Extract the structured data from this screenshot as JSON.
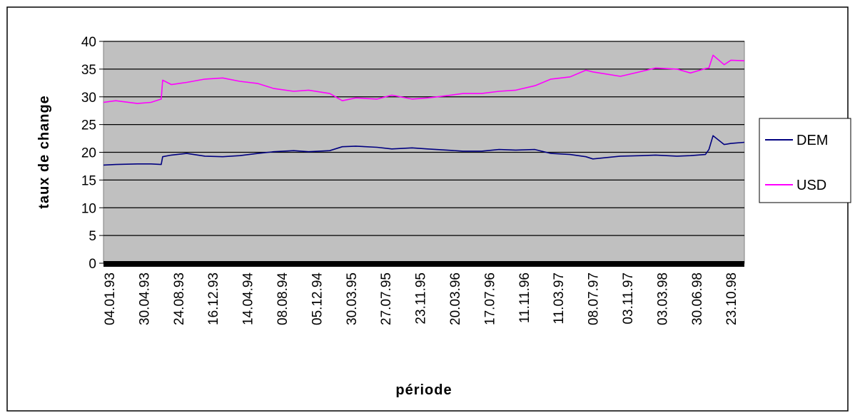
{
  "chart_data": {
    "type": "line",
    "title": "",
    "xlabel": "période",
    "ylabel": "taux de change",
    "ylim": [
      0,
      40
    ],
    "y_ticks": [
      0,
      5,
      10,
      15,
      20,
      25,
      30,
      35,
      40
    ],
    "x_tick_labels": [
      "04.01.93",
      "30.04.93",
      "24.08.93",
      "16.12.93",
      "14.04.94",
      "08.08.94",
      "05.12.94",
      "30.03.95",
      "27.07.95",
      "23.11.95",
      "20.03.96",
      "17.07.96",
      "11.11.96",
      "11.03.97",
      "08.07.97",
      "03.11.97",
      "03.03.98",
      "30.06.98",
      "23.10.98"
    ],
    "grid": true,
    "background": "#c0c0c0",
    "legend_position": "right",
    "series": [
      {
        "name": "DEM",
        "color": "#000080",
        "x": [
          "04.01.93",
          "15.02.93",
          "30.04.93",
          "15.06.93",
          "20.07.93",
          "25.07.93",
          "24.08.93",
          "15.10.93",
          "16.12.93",
          "15.02.94",
          "14.04.94",
          "15.06.94",
          "08.08.94",
          "15.10.94",
          "05.12.94",
          "15.02.95",
          "30.03.95",
          "15.05.95",
          "27.07.95",
          "15.09.95",
          "23.11.95",
          "15.01.96",
          "20.03.96",
          "15.05.96",
          "17.07.96",
          "15.09.96",
          "11.11.96",
          "15.01.97",
          "11.03.97",
          "15.05.97",
          "08.07.97",
          "01.08.97",
          "03.11.97",
          "15.01.98",
          "03.03.98",
          "15.05.98",
          "30.06.98",
          "20.08.98",
          "01.09.98",
          "15.09.98",
          "23.10.98",
          "15.11.98",
          "31.12.98"
        ],
        "values": [
          17.7,
          17.8,
          17.9,
          17.9,
          17.8,
          19.2,
          19.5,
          19.8,
          19.3,
          19.2,
          19.4,
          19.8,
          20.1,
          20.3,
          20.1,
          20.3,
          21.0,
          21.1,
          20.9,
          20.6,
          20.8,
          20.6,
          20.4,
          20.2,
          20.2,
          20.5,
          20.4,
          20.5,
          19.8,
          19.6,
          19.2,
          18.8,
          19.3,
          19.4,
          19.5,
          19.3,
          19.4,
          19.6,
          20.5,
          23.0,
          21.4,
          21.6,
          21.8
        ]
      },
      {
        "name": "USD",
        "color": "#ff00ff",
        "x": [
          "04.01.93",
          "15.02.93",
          "30.04.93",
          "15.06.93",
          "20.07.93",
          "25.07.93",
          "24.08.93",
          "15.10.93",
          "16.12.93",
          "15.02.94",
          "14.04.94",
          "15.06.94",
          "08.08.94",
          "15.10.94",
          "05.12.94",
          "15.02.95",
          "30.03.95",
          "15.05.95",
          "27.07.95",
          "15.09.95",
          "23.11.95",
          "15.01.96",
          "20.03.96",
          "15.05.96",
          "17.07.96",
          "15.09.96",
          "11.11.96",
          "15.01.97",
          "11.03.97",
          "15.05.97",
          "08.07.97",
          "01.08.97",
          "03.11.97",
          "15.01.98",
          "03.03.98",
          "15.05.98",
          "30.06.98",
          "20.08.98",
          "01.09.98",
          "15.09.98",
          "23.10.98",
          "15.11.98",
          "31.12.98"
        ],
        "values": [
          29.0,
          29.3,
          28.8,
          29.0,
          29.6,
          33.0,
          32.2,
          32.6,
          33.2,
          33.4,
          32.8,
          32.4,
          31.5,
          31.0,
          31.2,
          30.6,
          29.3,
          29.8,
          29.6,
          30.3,
          29.6,
          29.8,
          30.2,
          30.6,
          30.6,
          31.0,
          31.2,
          32.0,
          33.2,
          33.6,
          34.8,
          34.5,
          33.7,
          34.6,
          35.2,
          35.0,
          34.3,
          35.1,
          35.2,
          37.5,
          35.8,
          36.6,
          36.5
        ]
      }
    ]
  }
}
